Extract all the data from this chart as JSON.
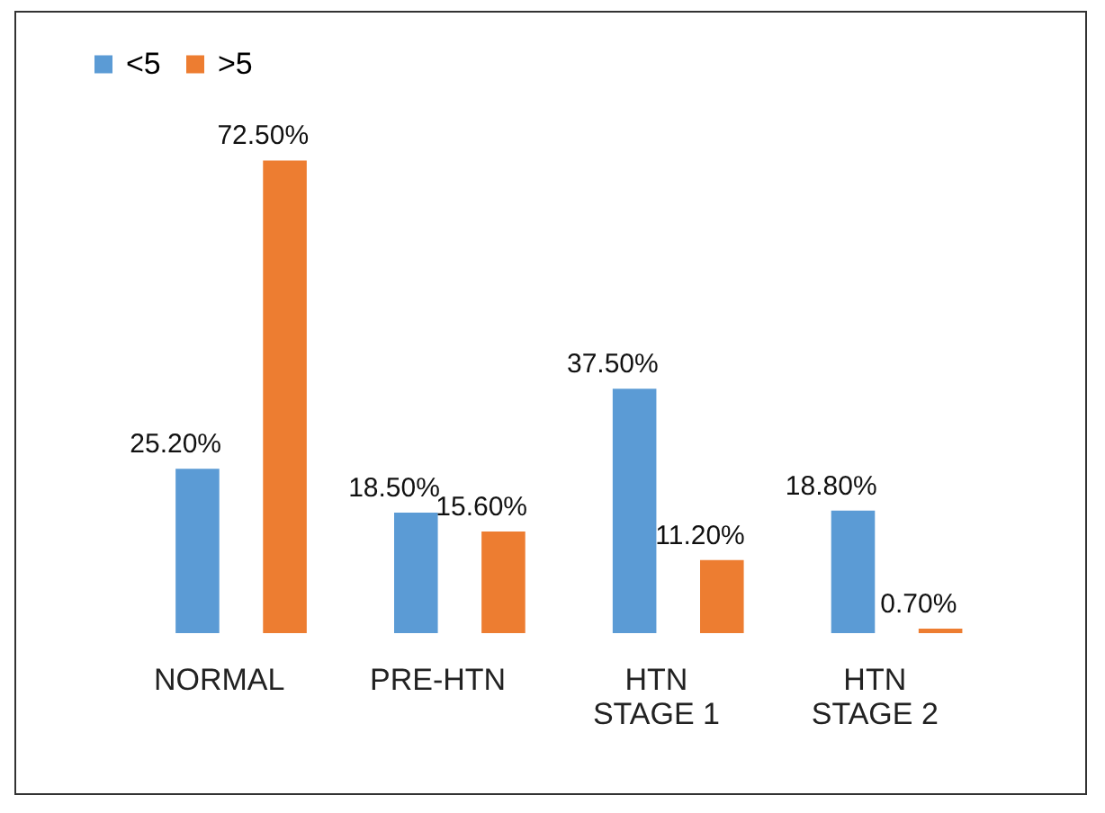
{
  "chart_data": {
    "type": "bar",
    "categories": [
      "NORMAL",
      "PRE-HTN",
      "HTN STAGE 1",
      "HTN STAGE 2"
    ],
    "series": [
      {
        "name": "<5",
        "color": "#5b9bd5",
        "values": [
          25.2,
          18.5,
          37.5,
          18.8
        ],
        "value_labels": [
          "25.20%",
          "18.50%",
          "37.50%",
          "18.80%"
        ]
      },
      {
        "name": ">5",
        "color": "#ed7d31",
        "values": [
          72.5,
          15.6,
          11.2,
          0.7
        ],
        "value_labels": [
          "72.50%",
          "15.60%",
          "11.20%",
          "0.70%"
        ]
      }
    ],
    "legend": "top"
  }
}
